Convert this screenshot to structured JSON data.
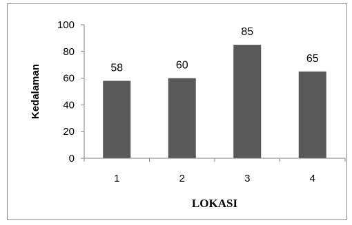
{
  "chart_data": {
    "type": "bar",
    "categories": [
      "1",
      "2",
      "3",
      "4"
    ],
    "values": [
      58,
      60,
      85,
      65
    ],
    "data_labels": [
      "58",
      "60",
      "85",
      "65"
    ],
    "title": "",
    "xlabel": "LOKASI",
    "ylabel": "Kedalaman",
    "ylim": [
      0,
      100
    ],
    "yticks": [
      "0",
      "20",
      "40",
      "60",
      "80",
      "100"
    ],
    "grid": false,
    "legend": "none",
    "bar_color": "#595959"
  }
}
